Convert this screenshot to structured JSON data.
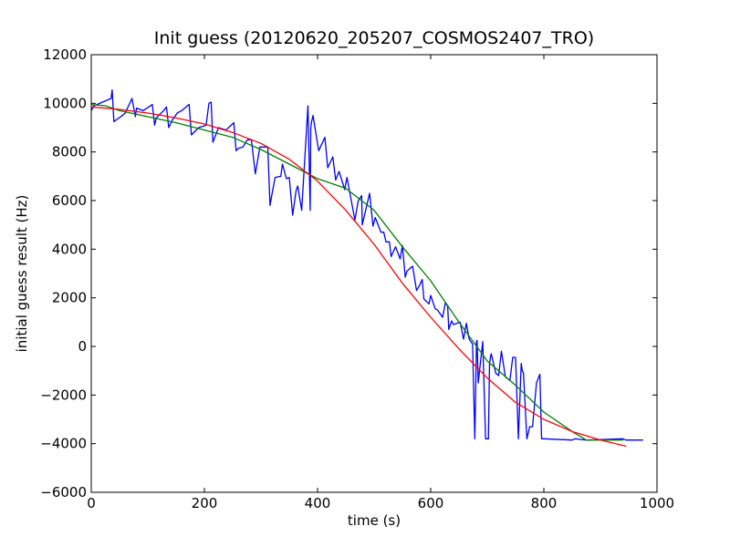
{
  "chart_data": {
    "type": "line",
    "title": "Init guess (20120620_205207_COSMOS2407_TRO)",
    "xlabel": "time (s)",
    "ylabel": "initial guess result (Hz)",
    "xlim": [
      0,
      1000
    ],
    "ylim": [
      -6000,
      12000
    ],
    "xticks": [
      0,
      200,
      400,
      600,
      800,
      1000
    ],
    "yticks": [
      -6000,
      -4000,
      -2000,
      0,
      2000,
      4000,
      6000,
      8000,
      10000,
      12000
    ],
    "grid": false,
    "legend": "none",
    "series": [
      {
        "color": "#0000ff",
        "x": [
          0,
          5,
          35,
          37,
          40,
          55,
          60,
          72,
          78,
          80,
          92,
          108,
          112,
          115,
          128,
          133,
          137,
          143,
          152,
          160,
          170,
          173,
          177,
          190,
          203,
          208,
          212,
          215,
          225,
          232,
          238,
          252,
          256,
          260,
          268,
          276,
          283,
          290,
          293,
          298,
          312,
          316,
          319,
          325,
          335,
          338,
          345,
          350,
          356,
          362,
          365,
          372,
          383,
          387,
          388,
          389,
          392,
          402,
          413,
          418,
          427,
          432,
          438,
          448,
          452,
          466,
          472,
          478,
          479,
          492,
          498,
          502,
          512,
          517,
          521,
          527,
          530,
          538,
          546,
          550,
          555,
          558,
          568,
          575,
          580,
          585,
          588,
          597,
          600,
          608,
          612,
          621,
          626,
          630,
          632,
          637,
          640,
          652,
          658,
          663,
          668,
          674,
          678,
          681,
          682,
          684,
          692,
          697,
          702,
          704,
          706,
          707,
          715,
          720,
          725,
          732,
          740,
          745,
          750,
          755,
          760,
          762,
          764,
          770,
          775,
          780,
          787,
          792,
          793,
          796,
          797,
          800,
          850,
          855,
          875,
          878,
          940,
          945,
          975
        ],
        "y": [
          9700,
          9900,
          10200,
          10550,
          9250,
          9500,
          9600,
          10200,
          9450,
          9800,
          9700,
          9950,
          9100,
          9400,
          9700,
          9850,
          9000,
          9300,
          9600,
          9700,
          9900,
          9950,
          8700,
          9000,
          9100,
          10000,
          10050,
          8400,
          9000,
          8950,
          8900,
          9200,
          8050,
          8150,
          8200,
          8500,
          8500,
          7100,
          7500,
          8200,
          8200,
          5800,
          6200,
          6950,
          7000,
          7500,
          6900,
          6950,
          5400,
          6400,
          6600,
          5600,
          9900,
          5600,
          8950,
          9200,
          9500,
          8050,
          8600,
          7350,
          7800,
          6850,
          7200,
          6450,
          6950,
          5200,
          6000,
          6200,
          5000,
          6300,
          4950,
          5300,
          4700,
          4700,
          4300,
          4300,
          3700,
          4100,
          3600,
          4150,
          2850,
          3100,
          3300,
          2300,
          2500,
          2750,
          1950,
          1750,
          2100,
          1550,
          1500,
          1200,
          1800,
          1650,
          700,
          1050,
          900,
          1000,
          300,
          950,
          300,
          100,
          -3800,
          200,
          250,
          -1500,
          200,
          -3800,
          -3800,
          -700,
          -400,
          -300,
          -1100,
          -1200,
          -200,
          -1250,
          -1400,
          -450,
          -450,
          -3800,
          -700,
          -1000,
          -1100,
          -3800,
          -3300,
          -3300,
          -1500,
          -1200,
          -1150,
          -3800,
          -3800,
          -3800,
          -3850,
          -3800,
          -3850,
          -3850,
          -3800,
          -3850,
          -3850
        ]
      },
      {
        "color": "#008000",
        "x": [
          0,
          25,
          50,
          100,
          150,
          200,
          250,
          300,
          350,
          400,
          450,
          500,
          550,
          600,
          650,
          700,
          750,
          800,
          850,
          875,
          920,
          940
        ],
        "y": [
          9950,
          9900,
          9700,
          9450,
          9200,
          8900,
          8600,
          8100,
          7500,
          6900,
          6500,
          5600,
          4100,
          2700,
          1000,
          -600,
          -1600,
          -2700,
          -3500,
          -3850,
          -3850,
          -3850
        ]
      },
      {
        "color": "#ff0000",
        "x": [
          0,
          50,
          100,
          150,
          200,
          250,
          300,
          350,
          400,
          450,
          500,
          550,
          600,
          650,
          700,
          750,
          800,
          850,
          900,
          945
        ],
        "y": [
          9850,
          9750,
          9600,
          9400,
          9150,
          8800,
          8350,
          7700,
          6800,
          5600,
          4200,
          2600,
          1200,
          -100,
          -1300,
          -2300,
          -3000,
          -3500,
          -3850,
          -4100
        ]
      }
    ]
  }
}
